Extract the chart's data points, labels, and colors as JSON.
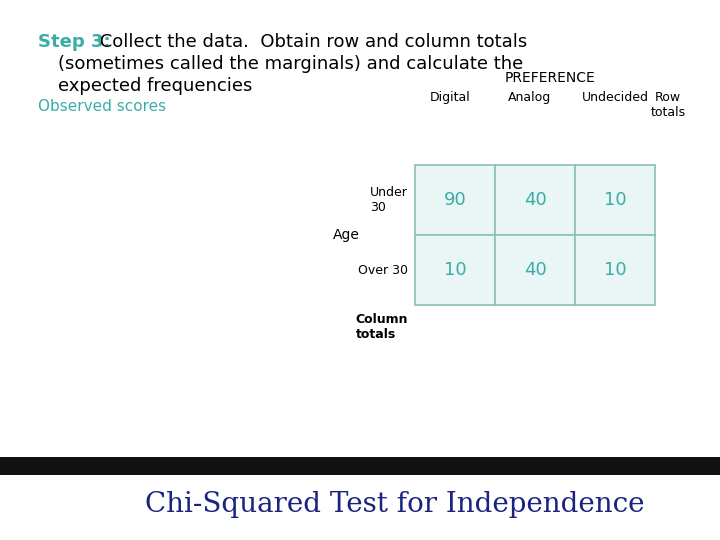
{
  "title_step": "Step 3:",
  "title_line1_rest": " Collect the data.  Obtain row and column totals",
  "title_line2": "(sometimes called the marginals) and calculate the",
  "title_line3": "expected frequencies",
  "observed_label": "Observed scores",
  "preference_label": "PREFERENCE",
  "col_headers": [
    "Digital",
    "Analog",
    "Undecided"
  ],
  "row_totals_label": "Row\ntotals",
  "age_label": "Age",
  "row_labels": [
    "Under\n30",
    "Over 30"
  ],
  "col_totals_label": "Column\ntotals",
  "data": [
    [
      90,
      40,
      10
    ],
    [
      10,
      40,
      10
    ]
  ],
  "teal_color": "#3aada8",
  "black": "#000000",
  "white": "#ffffff",
  "bg_color": "#ffffff",
  "footer_color": "#1a237e",
  "footer_text": "Chi-Squared Test for Independence",
  "footer_bg": "#111111",
  "cell_color": "#eaf6f5",
  "grid_color": "#8abfba",
  "title_fontsize": 13,
  "body_fontsize": 10,
  "cell_fontsize": 13,
  "footer_fontsize": 20
}
